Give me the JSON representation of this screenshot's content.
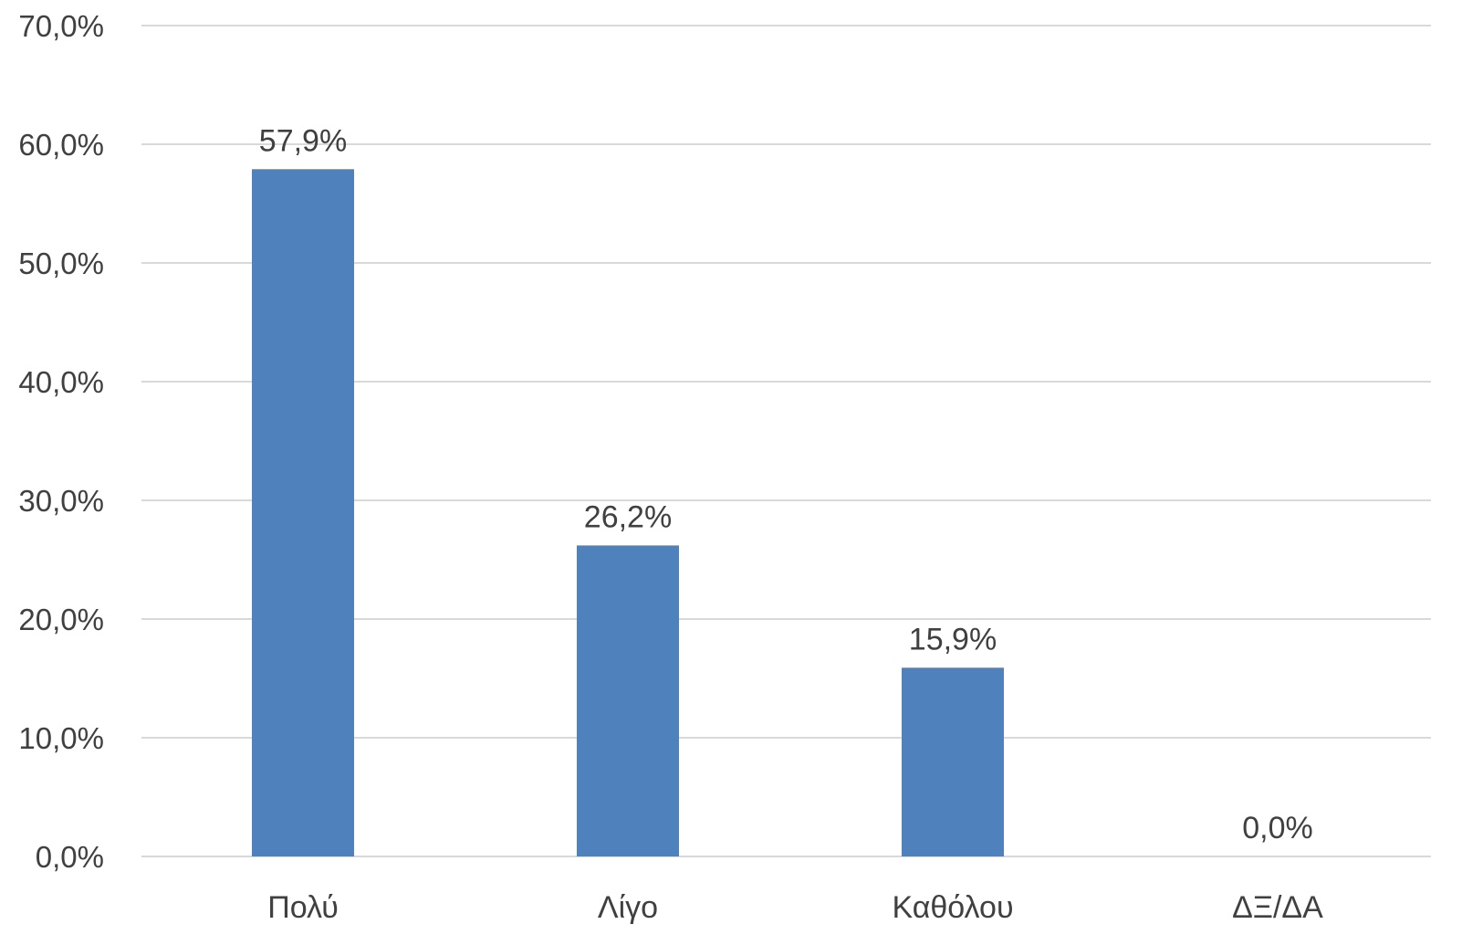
{
  "chart_data": {
    "type": "bar",
    "title": "",
    "xlabel": "",
    "ylabel": "",
    "categories": [
      "Πολύ",
      "Λίγο",
      "Καθόλου",
      "ΔΞ/ΔΑ"
    ],
    "values": [
      57.9,
      26.2,
      15.9,
      0.0
    ],
    "data_labels": [
      "57,9%",
      "26,2%",
      "15,9%",
      "0,0%"
    ],
    "ylim": [
      0,
      70
    ],
    "y_ticks": [
      0,
      10,
      20,
      30,
      40,
      50,
      60,
      70
    ],
    "y_tick_labels": [
      "0,0%",
      "10,0%",
      "20,0%",
      "30,0%",
      "40,0%",
      "50,0%",
      "60,0%",
      "70,0%"
    ],
    "grid": true,
    "legend": "none",
    "colors": {
      "bar": "#4f81bd",
      "gridline": "#d9d9d9",
      "text": "#404040"
    }
  }
}
